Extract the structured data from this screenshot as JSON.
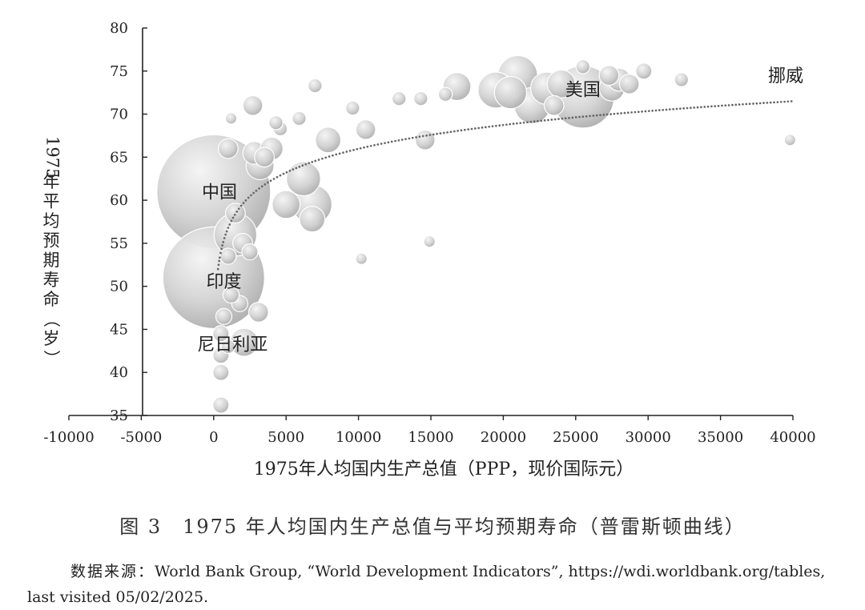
{
  "chart_data": {
    "type": "scatter",
    "subtype": "bubble",
    "xlabel": "1975年人均国内生产总值（PPP，现价国际元）",
    "ylabel": "1975年平均预期寿命（岁）",
    "xlim": [
      -10000,
      40000
    ],
    "ylim": [
      35,
      80
    ],
    "x_ticks": [
      -10000,
      -5000,
      0,
      5000,
      10000,
      15000,
      20000,
      25000,
      30000,
      35000,
      40000
    ],
    "y_ticks": [
      35,
      40,
      45,
      50,
      55,
      60,
      65,
      70,
      75,
      80
    ],
    "grid": false,
    "bubble_color": "#b9b9b9",
    "trend_color": "#666666",
    "bubbles": [
      {
        "x": 0,
        "y": 61,
        "size": 100
      },
      {
        "x": 0,
        "y": 51,
        "size": 80
      },
      {
        "x": 25500,
        "y": 72,
        "size": 30
      },
      {
        "x": 1500,
        "y": 56,
        "size": 14
      },
      {
        "x": 2100,
        "y": 43.5,
        "size": 6
      },
      {
        "x": 21000,
        "y": 74.5,
        "size": 12
      },
      {
        "x": 22000,
        "y": 71,
        "size": 10
      },
      {
        "x": 19500,
        "y": 72.8,
        "size": 10
      },
      {
        "x": 20500,
        "y": 72.5,
        "size": 8
      },
      {
        "x": 23000,
        "y": 73,
        "size": 8
      },
      {
        "x": 24000,
        "y": 73.5,
        "size": 6
      },
      {
        "x": 16800,
        "y": 73.2,
        "size": 6
      },
      {
        "x": 27500,
        "y": 73,
        "size": 5
      },
      {
        "x": 28000,
        "y": 74,
        "size": 4
      },
      {
        "x": 28700,
        "y": 73.5,
        "size": 3
      },
      {
        "x": 27300,
        "y": 74.5,
        "size": 3
      },
      {
        "x": 23500,
        "y": 71,
        "size": 3
      },
      {
        "x": 6800,
        "y": 59.5,
        "size": 12
      },
      {
        "x": 6200,
        "y": 62.5,
        "size": 9
      },
      {
        "x": 6800,
        "y": 57.8,
        "size": 5
      },
      {
        "x": 5000,
        "y": 59.5,
        "size": 6
      },
      {
        "x": 3200,
        "y": 64,
        "size": 6
      },
      {
        "x": 2800,
        "y": 65.5,
        "size": 4
      },
      {
        "x": 4000,
        "y": 66,
        "size": 4
      },
      {
        "x": 3500,
        "y": 65,
        "size": 3
      },
      {
        "x": 2700,
        "y": 71,
        "size": 3
      },
      {
        "x": 1000,
        "y": 66,
        "size": 3
      },
      {
        "x": 7900,
        "y": 67,
        "size": 5
      },
      {
        "x": 10500,
        "y": 68.2,
        "size": 3
      },
      {
        "x": 14600,
        "y": 67,
        "size": 3
      },
      {
        "x": 1500,
        "y": 58.5,
        "size": 3
      },
      {
        "x": 2000,
        "y": 55,
        "size": 3
      },
      {
        "x": 2500,
        "y": 54,
        "size": 2
      },
      {
        "x": 3100,
        "y": 47,
        "size": 3
      },
      {
        "x": 1000,
        "y": 53.5,
        "size": 2
      },
      {
        "x": 1800,
        "y": 48,
        "size": 2
      },
      {
        "x": 700,
        "y": 46.5,
        "size": 2
      },
      {
        "x": 1200,
        "y": 49,
        "size": 2
      },
      {
        "x": 500,
        "y": 44.5,
        "size": 2
      },
      {
        "x": 500,
        "y": 42,
        "size": 2
      },
      {
        "x": 500,
        "y": 40,
        "size": 2
      },
      {
        "x": 500,
        "y": 36.2,
        "size": 2
      },
      {
        "x": 1000,
        "y": 43,
        "size": 1.5
      },
      {
        "x": 7000,
        "y": 73.3,
        "size": 1.5
      },
      {
        "x": 5900,
        "y": 69.5,
        "size": 1.5
      },
      {
        "x": 4600,
        "y": 68.3,
        "size": 1.5
      },
      {
        "x": 4300,
        "y": 69,
        "size": 1.5
      },
      {
        "x": 9600,
        "y": 70.7,
        "size": 1.5
      },
      {
        "x": 12800,
        "y": 71.8,
        "size": 1.5
      },
      {
        "x": 14300,
        "y": 71.8,
        "size": 1.5
      },
      {
        "x": 16000,
        "y": 72.3,
        "size": 1.5
      },
      {
        "x": 29700,
        "y": 75,
        "size": 2
      },
      {
        "x": 32300,
        "y": 74,
        "size": 1.5
      },
      {
        "x": 25500,
        "y": 75.5,
        "size": 1.5
      },
      {
        "x": 10200,
        "y": 53.2,
        "size": 1
      },
      {
        "x": 14900,
        "y": 55.2,
        "size": 1
      },
      {
        "x": 1200,
        "y": 69.5,
        "size": 1
      },
      {
        "x": 39800,
        "y": 67,
        "size": 1
      }
    ],
    "trendline": {
      "type": "logarithmic",
      "x_from": 300,
      "x_to": 40000,
      "y_at_from": 52,
      "y_at_to": 71.5
    },
    "annotations": [
      {
        "text": "中国",
        "x": 400,
        "y": 61
      },
      {
        "text": "印度",
        "x": 700,
        "y": 50.6
      },
      {
        "text": "尼日利亚",
        "x": 1300,
        "y": 43.3
      },
      {
        "text": "美国",
        "x": 25500,
        "y": 72.9
      },
      {
        "text": "挪威",
        "x": 39500,
        "y": 74.5
      }
    ]
  },
  "caption": "图 3　1975 年人均国内生产总值与平均预期寿命（普雷斯顿曲线）",
  "source_lead": "数据来源：",
  "source_body": "World Bank Group, “World Development Indicators”, https://wdi.worldbank.org/tables, last visited 05/02/2025."
}
